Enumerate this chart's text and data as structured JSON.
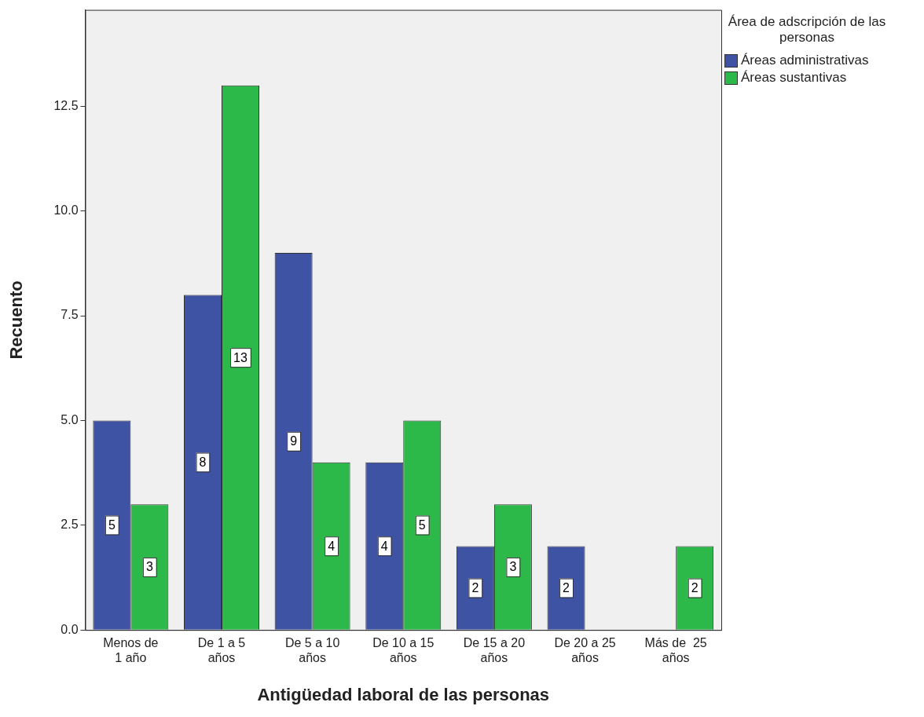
{
  "chart_data": {
    "type": "bar",
    "xlabel": "Antigüedad laboral de las personas",
    "ylabel": "Recuento",
    "legend_title": "Área de adscripción de las personas",
    "categories": [
      "Menos de 1 año",
      "De 1 a 5 años",
      "De 5 a 10 años",
      "De 10 a 15 años",
      "De 15 a 20 años",
      "De 20 a 25 años",
      "Más de  25 años"
    ],
    "series": [
      {
        "name": "Áreas administrativas",
        "color": "#3e53a4",
        "values": [
          5,
          8,
          9,
          4,
          2,
          2,
          null
        ]
      },
      {
        "name": "Áreas sustantivas",
        "color": "#2db84a",
        "values": [
          3,
          13,
          4,
          5,
          3,
          null,
          2
        ]
      }
    ],
    "ylim": [
      0,
      14.8
    ],
    "yticks": [
      {
        "value": 0,
        "label": "0.0"
      },
      {
        "value": 2.5,
        "label": "2.5"
      },
      {
        "value": 5,
        "label": "5.0"
      },
      {
        "value": 7.5,
        "label": "7.5"
      },
      {
        "value": 10,
        "label": "10.0"
      },
      {
        "value": 12.5,
        "label": "12.5"
      }
    ],
    "grid": false,
    "legend": "top right",
    "data_labels": true
  }
}
